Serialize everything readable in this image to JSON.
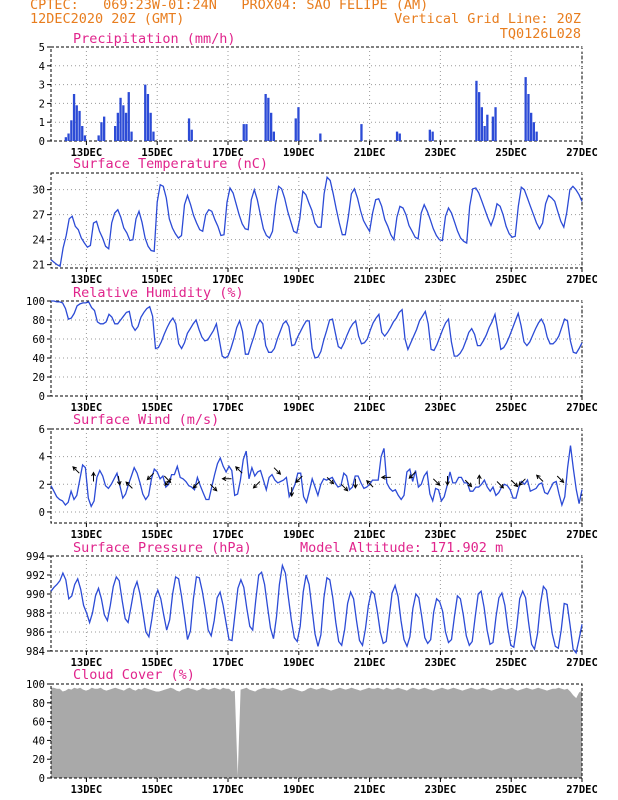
{
  "header": {
    "line1_left": "CPTEC:   069:23W-01:24N   PROX04: SAO FELIPE (AM)",
    "line2_left": "12DEC2020 20Z (GMT)",
    "line2_right": "Vertical Grid Line: 20Z",
    "line3_right": "TQ0126L028"
  },
  "colors": {
    "header": "#e87d1e",
    "title": "#e0248c",
    "series": "#2c4bd6",
    "cloud": "#a9a9a9",
    "grid": "#9a9a9a"
  },
  "x_axis": {
    "start": "12DEC 20Z",
    "end": "27DEC 20Z",
    "step_hours": 3,
    "tick_labels": [
      "13DEC",
      "15DEC",
      "17DEC",
      "19DEC",
      "21DEC",
      "23DEC",
      "25DEC",
      "27DEC"
    ],
    "tick_days": [
      1,
      3,
      5,
      7,
      9,
      11,
      13,
      15
    ]
  },
  "chart_data": [
    {
      "type": "bar",
      "title": "Precipitation (mm/h)",
      "ylim": [
        0,
        5
      ],
      "yticks": [
        0,
        1,
        2,
        3,
        4,
        5
      ],
      "grid": true,
      "values": [
        0,
        0,
        0,
        0,
        0,
        0.2,
        0.4,
        1.1,
        2.5,
        1.9,
        1.6,
        0.8,
        0.3,
        0,
        0,
        0,
        0,
        0.3,
        1.0,
        1.3,
        0,
        0,
        0,
        0.8,
        1.5,
        2.3,
        1.9,
        1.5,
        2.6,
        0.5,
        0,
        0,
        0,
        0,
        3.0,
        2.5,
        1.5,
        0.5,
        0,
        0,
        0,
        0,
        0,
        0,
        0,
        0,
        0,
        0,
        0,
        0,
        1.2,
        0.6,
        0,
        0,
        0,
        0,
        0,
        0,
        0,
        0,
        0,
        0,
        0,
        0,
        0,
        0,
        0,
        0,
        0,
        0,
        0.9,
        0.9,
        0,
        0,
        0,
        0,
        0,
        0,
        2.5,
        2.3,
        1.5,
        0.5,
        0,
        0,
        0,
        0,
        0,
        0,
        0,
        1.2,
        1.8,
        0,
        0,
        0,
        0,
        0,
        0,
        0,
        0.4,
        0,
        0,
        0,
        0,
        0,
        0,
        0,
        0,
        0,
        0,
        0,
        0,
        0,
        0,
        0.9,
        0,
        0,
        0,
        0,
        0,
        0,
        0,
        0,
        0,
        0,
        0,
        0,
        0.5,
        0.4,
        0,
        0,
        0,
        0,
        0,
        0,
        0,
        0,
        0,
        0,
        0.6,
        0.5,
        0,
        0,
        0,
        0,
        0,
        0,
        0,
        0,
        0,
        0,
        0,
        0,
        0,
        0,
        0,
        3.2,
        2.6,
        1.8,
        0.8,
        1.4,
        0,
        1.3,
        1.8,
        0,
        0,
        0,
        0,
        0,
        0,
        0,
        0,
        0,
        0,
        3.4,
        2.5,
        1.5,
        1.0,
        0.5,
        0,
        0,
        0,
        0,
        0,
        0,
        0,
        0,
        0,
        0,
        0,
        0,
        0,
        0,
        0,
        0
      ]
    },
    {
      "type": "line",
      "title": "Surface Temperature (nC)",
      "ylim": [
        20.6,
        32.0
      ],
      "yticks": [
        21,
        24,
        27,
        30
      ],
      "grid": true,
      "values": [
        21.6,
        21.3,
        21.0,
        20.8,
        23.0,
        24.5,
        26.5,
        26.8,
        25.6,
        25.2,
        24.2,
        23.6,
        23.1,
        23.3,
        26.0,
        26.2,
        25.0,
        24.2,
        23.2,
        22.9,
        26.0,
        27.2,
        27.6,
        26.7,
        25.4,
        24.8,
        23.9,
        24.0,
        26.5,
        27.4,
        26.1,
        24.2,
        23.2,
        22.7,
        22.6,
        28.5,
        30.6,
        30.4,
        29.0,
        26.5,
        25.4,
        24.7,
        24.2,
        24.5,
        28.2,
        29.3,
        28.2,
        26.9,
        26.0,
        25.2,
        25.0,
        27.0,
        27.6,
        27.4,
        26.4,
        25.6,
        24.5,
        24.6,
        28.5,
        30.2,
        29.6,
        28.3,
        27.0,
        25.9,
        25.3,
        25.2,
        28.8,
        30.0,
        28.8,
        27.0,
        25.3,
        24.5,
        24.2,
        25.0,
        28.2,
        30.4,
        30.1,
        29.0,
        27.4,
        26.2,
        25.0,
        24.8,
        26.5,
        29.8,
        29.4,
        28.4,
        27.5,
        26.0,
        25.5,
        25.5,
        29.5,
        31.5,
        31.1,
        29.5,
        27.7,
        26.0,
        24.6,
        24.6,
        26.8,
        29.5,
        30.1,
        29.0,
        27.5,
        26.3,
        25.6,
        25.0,
        27.2,
        28.8,
        28.9,
        28.0,
        26.4,
        25.6,
        24.6,
        24.0,
        26.7,
        28.0,
        27.8,
        27.0,
        25.7,
        25.0,
        24.3,
        24.1,
        27.2,
        28.2,
        27.4,
        26.4,
        25.3,
        24.5,
        24.0,
        23.9,
        26.8,
        27.8,
        27.2,
        26.1,
        25.0,
        24.2,
        23.8,
        23.6,
        28.0,
        30.1,
        30.2,
        29.6,
        28.6,
        27.6,
        26.6,
        25.7,
        26.7,
        28.3,
        28.0,
        27.0,
        25.6,
        24.7,
        24.3,
        24.4,
        28.0,
        30.3,
        30.0,
        29.0,
        28.0,
        27.0,
        26.0,
        25.3,
        26.0,
        28.3,
        29.3,
        29.0,
        28.6,
        27.4,
        26.2,
        25.5,
        27.3,
        30.0,
        30.4,
        30.0,
        29.4,
        28.6
      ]
    },
    {
      "type": "line",
      "title": "Relative Humidity (%)",
      "ylim": [
        0,
        100
      ],
      "yticks": [
        0,
        20,
        40,
        60,
        80,
        100
      ],
      "grid": true,
      "values": [
        100,
        100,
        99,
        99,
        98,
        92,
        81,
        82,
        87,
        95,
        97,
        98,
        98,
        99,
        93,
        90,
        78,
        76,
        76,
        78,
        86,
        83,
        76,
        76,
        80,
        84,
        88,
        89,
        74,
        69,
        73,
        83,
        88,
        92,
        94,
        84,
        50,
        51,
        57,
        65,
        72,
        78,
        82,
        76,
        55,
        50,
        56,
        66,
        71,
        76,
        80,
        70,
        62,
        58,
        59,
        64,
        69,
        76,
        59,
        42,
        40,
        42,
        50,
        60,
        72,
        79,
        68,
        44,
        44,
        54,
        63,
        74,
        80,
        76,
        53,
        46,
        46,
        50,
        60,
        68,
        76,
        79,
        73,
        53,
        54,
        62,
        68,
        74,
        79,
        79,
        50,
        40,
        41,
        47,
        59,
        69,
        80,
        81,
        66,
        52,
        50,
        56,
        64,
        71,
        76,
        79,
        63,
        55,
        56,
        60,
        69,
        77,
        82,
        86,
        67,
        63,
        67,
        72,
        78,
        82,
        88,
        91,
        60,
        49,
        56,
        63,
        70,
        79,
        84,
        89,
        76,
        49,
        48,
        54,
        62,
        70,
        77,
        81,
        57,
        42,
        42,
        45,
        50,
        58,
        67,
        71,
        65,
        53,
        53,
        58,
        64,
        72,
        78,
        86,
        68,
        49,
        51,
        56,
        63,
        71,
        79,
        87,
        74,
        57,
        53,
        57,
        64,
        71,
        77,
        81,
        75,
        62,
        55,
        55,
        58,
        63,
        72,
        81,
        79,
        58,
        46,
        45,
        50,
        56
      ]
    },
    {
      "type": "line",
      "title": "Surface Wind (m/s)",
      "ylim": [
        -0.8,
        6
      ],
      "yticks": [
        0,
        2,
        4,
        6
      ],
      "grid": true,
      "values": [
        1.9,
        1.5,
        1.1,
        0.9,
        0.8,
        0.5,
        0.7,
        1.5,
        0.9,
        1.2,
        2.3,
        3.4,
        3.2,
        1.0,
        0.4,
        0.8,
        2.5,
        3.0,
        2.6,
        1.9,
        1.7,
        2.0,
        2.4,
        2.8,
        1.9,
        1.0,
        1.3,
        2.0,
        2.6,
        3.2,
        2.8,
        2.1,
        1.3,
        0.9,
        1.2,
        2.4,
        3.1,
        2.9,
        2.4,
        2.6,
        1.8,
        2.0,
        2.7,
        2.7,
        3.3,
        2.5,
        2.4,
        2.2,
        1.9,
        1.8,
        1.6,
        2.5,
        1.9,
        1.4,
        0.9,
        0.9,
        1.8,
        2.7,
        3.5,
        3.9,
        3.3,
        2.9,
        3.3,
        3.0,
        1.2,
        1.3,
        2.3,
        3.8,
        4.4,
        2.4,
        3.2,
        2.6,
        2.9,
        3.0,
        2.3,
        1.6,
        2.5,
        2.7,
        2.3,
        2.1,
        2.2,
        2.3,
        2.5,
        1.1,
        1.5,
        2.0,
        2.8,
        2.8,
        1.1,
        0.7,
        1.5,
        2.4,
        1.8,
        1.2,
        2.0,
        2.4,
        2.3,
        2.4,
        2.5,
        2.1,
        1.8,
        1.9,
        2.8,
        2.6,
        1.6,
        1.8,
        2.6,
        2.6,
        2.1,
        1.7,
        1.8,
        2.0,
        2.3,
        2.3,
        2.3,
        4.0,
        4.6,
        2.1,
        1.7,
        1.5,
        1.6,
        1.2,
        0.9,
        1.2,
        2.9,
        3.1,
        2.2,
        3.0,
        1.8,
        2.0,
        2.6,
        2.9,
        1.3,
        0.8,
        1.7,
        1.6,
        0.8,
        1.1,
        1.9,
        2.9,
        2.1,
        2.1,
        2.5,
        2.5,
        2.1,
        2.1,
        1.5,
        1.5,
        1.8,
        1.8,
        2.0,
        2.3,
        1.8,
        1.5,
        1.8,
        1.2,
        1.4,
        1.8,
        2.0,
        1.9,
        1.6,
        1.0,
        1.0,
        1.8,
        2.2,
        2.0,
        2.3,
        1.5,
        1.6,
        1.7,
        2.0,
        2.1,
        1.4,
        1.3,
        1.7,
        2.1,
        2.2,
        1.3,
        0.5,
        1.1,
        3.2,
        4.8,
        3.1,
        1.6,
        0.6,
        1.6
      ]
    },
    {
      "type": "line",
      "title": "Surface Pressure (hPa)",
      "annotation": "Model Altitude: 171.902 m",
      "ylim": [
        984,
        994
      ],
      "yticks": [
        984,
        986,
        988,
        990,
        992,
        994
      ],
      "grid": true,
      "values": [
        990.3,
        990.7,
        991.0,
        991.4,
        992.2,
        991.5,
        989.5,
        989.8,
        991.0,
        991.6,
        990.5,
        988.8,
        988.0,
        987.0,
        988.0,
        989.8,
        990.6,
        989.5,
        987.8,
        987.2,
        988.8,
        990.8,
        991.8,
        991.4,
        989.3,
        987.4,
        987.0,
        988.7,
        990.5,
        991.3,
        990.0,
        988.0,
        986.0,
        985.5,
        987.4,
        989.6,
        990.4,
        989.5,
        987.8,
        986.2,
        987.3,
        990.0,
        991.8,
        991.6,
        989.8,
        987.6,
        985.2,
        986.1,
        989.5,
        991.8,
        991.7,
        990.3,
        988.4,
        986.2,
        985.6,
        987.2,
        989.6,
        990.2,
        988.8,
        987.0,
        985.2,
        985.1,
        987.8,
        990.6,
        991.5,
        990.7,
        988.5,
        986.6,
        986.2,
        989.3,
        992.0,
        992.3,
        991.0,
        988.6,
        986.4,
        985.3,
        987.6,
        991.0,
        993.0,
        992.2,
        989.7,
        987.3,
        985.4,
        985.0,
        986.6,
        990.2,
        992.0,
        991.0,
        988.4,
        985.8,
        984.5,
        985.7,
        989.6,
        991.7,
        991.5,
        989.6,
        987.0,
        985.0,
        984.6,
        986.3,
        989.0,
        990.2,
        989.5,
        987.2,
        985.1,
        984.6,
        986.3,
        988.8,
        990.3,
        990.0,
        988.2,
        986.0,
        984.8,
        985.0,
        987.6,
        990.1,
        990.9,
        989.7,
        987.2,
        985.2,
        984.5,
        985.5,
        988.5,
        990.0,
        989.6,
        987.6,
        985.4,
        984.8,
        985.2,
        988.1,
        989.5,
        989.2,
        988.2,
        986.0,
        984.9,
        985.2,
        987.6,
        989.8,
        989.5,
        987.8,
        985.6,
        984.6,
        985.0,
        987.6,
        990.0,
        990.3,
        988.6,
        986.2,
        984.7,
        984.9,
        987.6,
        989.6,
        990.1,
        988.8,
        986.4,
        984.6,
        984.4,
        986.5,
        989.5,
        990.3,
        989.6,
        987.0,
        984.7,
        984.2,
        985.8,
        989.0,
        990.8,
        990.4,
        988.0,
        985.8,
        984.5,
        984.3,
        986.2,
        989.0,
        988.9,
        986.7,
        984.2,
        983.8,
        985.2,
        986.8
      ]
    },
    {
      "type": "area",
      "title": "Cloud Cover (%)",
      "ylim": [
        0,
        100
      ],
      "yticks": [
        0,
        20,
        40,
        60,
        80,
        100
      ],
      "grid": false,
      "values": [
        96,
        96,
        95,
        95,
        92,
        93,
        95,
        94,
        96,
        95,
        96,
        94,
        93,
        94,
        96,
        95,
        95,
        96,
        94,
        93,
        94,
        95,
        96,
        95,
        94,
        93,
        95,
        96,
        94,
        93,
        95,
        94,
        96,
        95,
        94,
        93,
        92,
        92,
        93,
        94,
        95,
        96,
        95,
        93,
        92,
        94,
        95,
        96,
        95,
        94,
        93,
        94,
        96,
        95,
        94,
        95,
        96,
        95,
        94,
        96,
        95,
        95,
        92,
        93,
        2,
        94,
        95,
        96,
        94,
        93,
        92,
        94,
        95,
        96,
        95,
        95,
        96,
        95,
        94,
        93,
        94,
        95,
        96,
        95,
        94,
        93,
        92,
        93,
        95,
        96,
        95,
        94,
        95,
        96,
        95,
        94,
        93,
        94,
        95,
        96,
        95,
        94,
        95,
        96,
        95,
        94,
        93,
        94,
        95,
        96,
        95,
        95,
        96,
        95,
        94,
        96,
        95,
        94,
        95,
        96,
        95,
        94,
        93,
        95,
        96,
        95,
        94,
        95,
        96,
        95,
        94,
        93,
        94,
        95,
        96,
        95,
        94,
        95,
        96,
        95,
        94,
        93,
        94,
        95,
        96,
        95,
        94,
        95,
        96,
        95,
        94,
        93,
        94,
        95,
        96,
        95,
        94,
        95,
        96,
        94,
        93,
        94,
        95,
        96,
        95,
        94,
        95,
        96,
        95,
        94,
        93,
        94,
        95,
        95,
        96,
        95,
        94,
        95,
        92,
        88,
        85,
        91,
        93
      ]
    }
  ]
}
